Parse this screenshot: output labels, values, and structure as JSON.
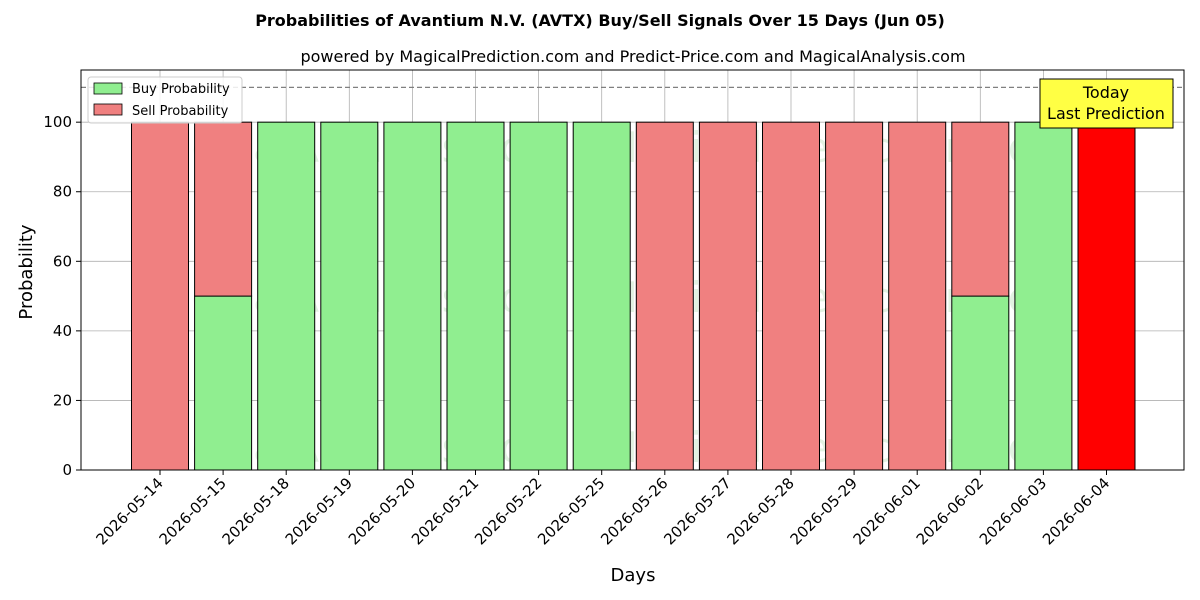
{
  "chart_data": {
    "type": "bar",
    "title": "Probabilities of Avantium N.V. (AVTX) Buy/Sell Signals Over 15 Days (Jun 05)",
    "subtitle": "powered by MagicalPrediction.com and Predict-Price.com and MagicalAnalysis.com",
    "xlabel": "Days",
    "ylabel": "Probability",
    "ylim": [
      0,
      115
    ],
    "yticks": [
      0,
      20,
      40,
      60,
      80,
      100
    ],
    "grid": true,
    "stacked": true,
    "categories": [
      "2026-05-14",
      "2026-05-15",
      "2026-05-18",
      "2026-05-19",
      "2026-05-20",
      "2026-05-21",
      "2026-05-22",
      "2026-05-25",
      "2026-05-26",
      "2026-05-27",
      "2026-05-28",
      "2026-05-29",
      "2026-06-01",
      "2026-06-02",
      "2026-06-03",
      "2026-06-04"
    ],
    "series": [
      {
        "name": "Buy Probability",
        "color": "#90ee90",
        "values": [
          0,
          50,
          100,
          100,
          100,
          100,
          100,
          100,
          0,
          0,
          0,
          0,
          0,
          50,
          100,
          0
        ]
      },
      {
        "name": "Sell Probability",
        "color": "#f08080",
        "values": [
          100,
          50,
          0,
          0,
          0,
          0,
          0,
          0,
          100,
          100,
          100,
          100,
          100,
          50,
          0,
          100
        ]
      }
    ],
    "highlight": {
      "category": "2026-06-04",
      "color": "#ff0000"
    },
    "reference_line": {
      "y": 110,
      "style": "dashed",
      "color": "#808080"
    },
    "legend_position": "top-left",
    "annotation": {
      "line1": "Today",
      "line2": "Last Prediction",
      "background": "#ffff44"
    },
    "watermarks": [
      "MagicalAnalysis.com",
      "MagicalPrediction.com"
    ]
  }
}
